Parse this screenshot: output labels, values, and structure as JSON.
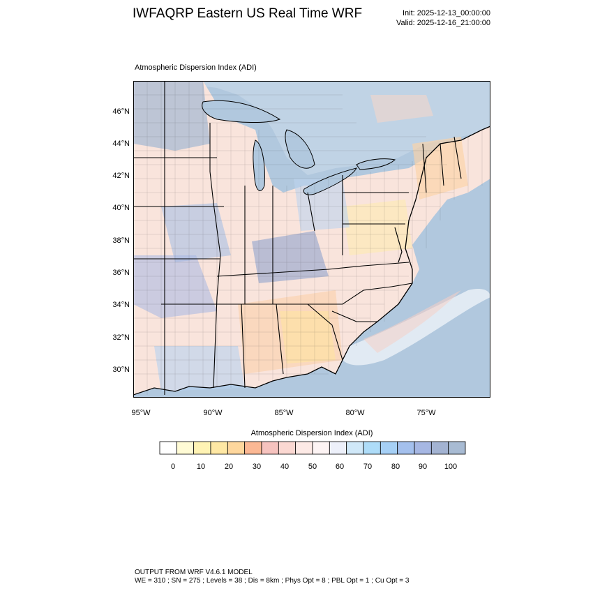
{
  "header": {
    "title": "IWFAQRP Eastern US Real Time WRF",
    "init": "Init: 2025-12-13_00:00:00",
    "valid": "Valid: 2025-12-16_21:00:00"
  },
  "plot": {
    "title": "Atmospheric Dispersion Index   (ADI)",
    "lat_labels": [
      "46°N",
      "44°N",
      "42°N",
      "40°N",
      "38°N",
      "36°N",
      "34°N",
      "32°N",
      "30°N"
    ],
    "lon_labels": [
      "95°W",
      "90°W",
      "85°W",
      "80°W",
      "75°W"
    ]
  },
  "colorbar": {
    "title": "Atmospheric Dispersion Index  (ADI)",
    "labels": [
      "0",
      "10",
      "20",
      "30",
      "40",
      "50",
      "60",
      "70",
      "80",
      "90",
      "100"
    ],
    "colors": [
      "#ffffff",
      "#fffbd5",
      "#fff3b4",
      "#ffe8a4",
      "#fed79d",
      "#fbb894",
      "#f6c3bf",
      "#fbd8d2",
      "#fdeae6",
      "#fdf4f4",
      "#edf0fa",
      "#d0e8f8",
      "#aedcf8",
      "#a6d0f6",
      "#a4c0ed",
      "#a6b7e3",
      "#a3b3d2",
      "#a8bbd3"
    ]
  },
  "map_colors": {
    "ocean": "#b1c8de",
    "lake": "#b1c8de",
    "land": "#f9e4dc"
  },
  "footer": {
    "line1": "OUTPUT FROM WRF V4.6.1 MODEL",
    "line2": "WE = 310 ; SN = 275 ; Levels = 38 ; Dis = 8km ; Phys Opt = 8 ; PBL Opt = 1 ; Cu Opt = 3"
  }
}
